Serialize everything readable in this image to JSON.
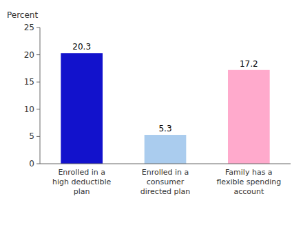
{
  "chart_data": {
    "type": "bar",
    "ylabel": "Percent",
    "categories": [
      "Enrolled in a\nhigh deductible\nplan",
      "Enrolled in a\nconsumer\ndirected plan",
      "Family has a\nflexible spending\naccount"
    ],
    "values": [
      20.3,
      5.3,
      17.2
    ],
    "colors": [
      "#1212cc",
      "#aaccee",
      "#ffaacc"
    ],
    "ylim": [
      0,
      25
    ],
    "yticks": [
      0,
      5,
      10,
      15,
      20,
      25
    ],
    "data_labels": true,
    "grid": false
  }
}
